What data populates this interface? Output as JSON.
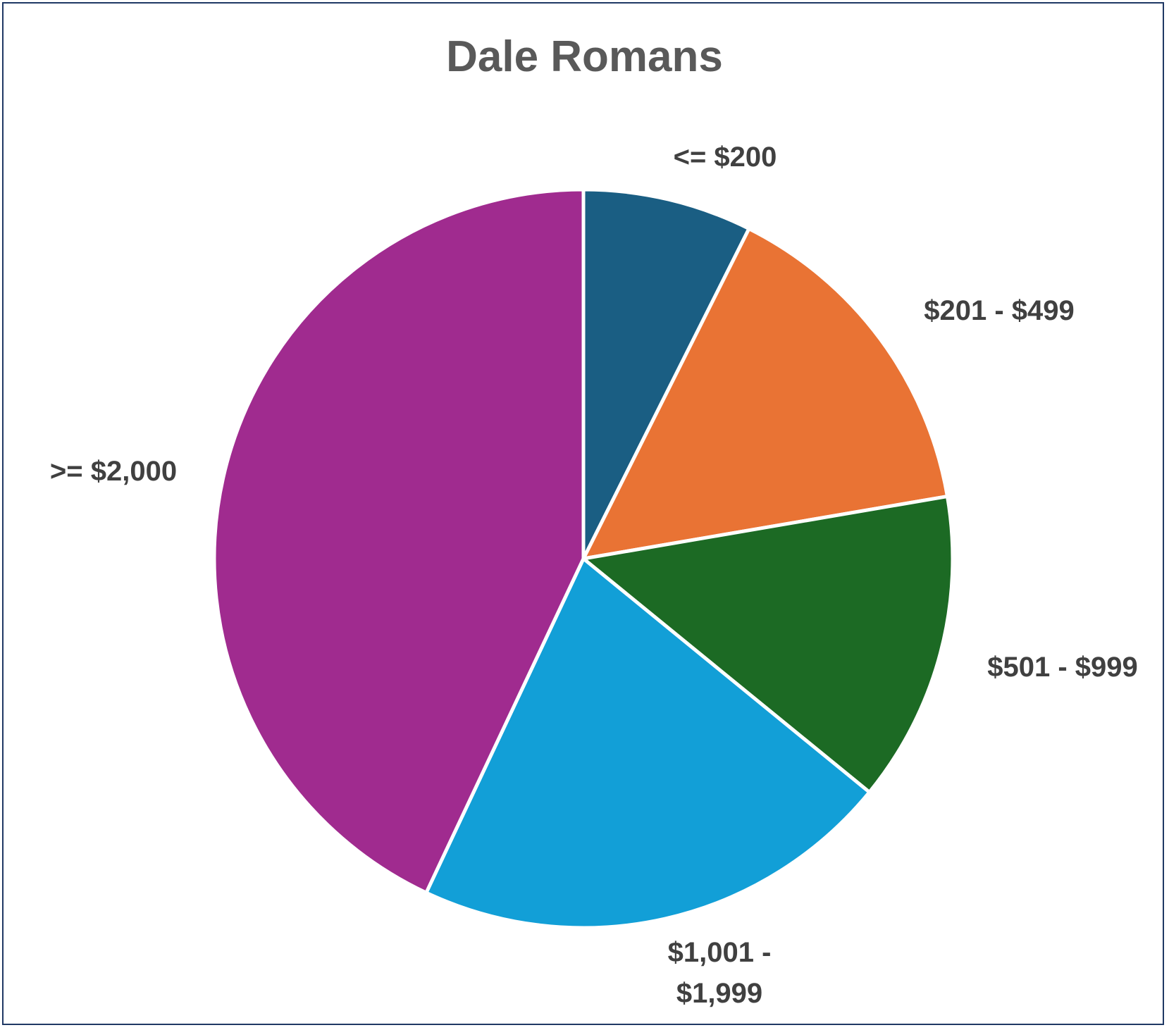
{
  "chart_data": {
    "type": "pie",
    "title": "Dale Romans",
    "categories": [
      "<= $200",
      "$201 - $499",
      "$501 - $999",
      "$1,001 - $1,999",
      ">= $2,000"
    ],
    "values": [
      7.4,
      14.9,
      13.6,
      21.1,
      43.0
    ],
    "colors": [
      "#1a5e83",
      "#e97334",
      "#1c6a24",
      "#129fd7",
      "#a02b8f"
    ]
  }
}
